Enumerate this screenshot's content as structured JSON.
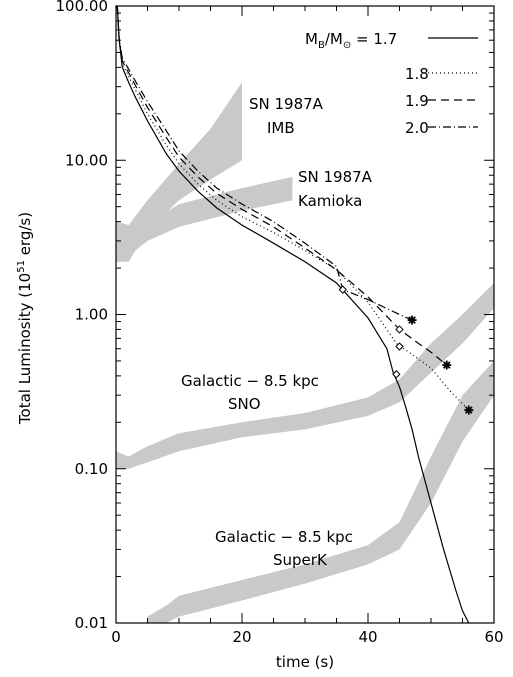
{
  "chart_data": {
    "type": "line",
    "xlabel": "time (s)",
    "ylabel": "Total Luminosity (10",
    "ylabel_sup": "51",
    "ylabel_tail": " erg/s)",
    "xlim": [
      0,
      60
    ],
    "ylim": [
      0.01,
      100
    ],
    "yscale": "log",
    "x_ticks": [
      {
        "value": 0,
        "label": "0"
      },
      {
        "value": 20,
        "label": "20"
      },
      {
        "value": 40,
        "label": "40"
      },
      {
        "value": 60,
        "label": "60"
      }
    ],
    "y_ticks": [
      {
        "value": 0.01,
        "label": "0.01"
      },
      {
        "value": 0.1,
        "label": "0.10"
      },
      {
        "value": 1,
        "label": "1.00"
      },
      {
        "value": 10,
        "label": "10.00"
      },
      {
        "value": 100,
        "label": "100.00"
      }
    ],
    "legend": {
      "title_M": "M",
      "title_B": "B",
      "title_slash": "/M",
      "title_sun": "⊙",
      "title_eq": " = ",
      "placement": "top-right"
    },
    "series": [
      {
        "name": "1.7",
        "dash": "solid",
        "x": [
          0.2,
          0.5,
          1,
          2,
          3,
          5,
          8,
          10,
          13,
          16,
          20,
          25,
          30,
          35,
          40,
          43,
          44,
          45,
          46,
          47,
          48,
          50,
          52,
          54,
          55,
          56
        ],
        "y": [
          100,
          60,
          40,
          32,
          26,
          18,
          11,
          8.5,
          6.3,
          4.9,
          3.8,
          2.9,
          2.2,
          1.6,
          0.95,
          0.6,
          0.42,
          0.34,
          0.25,
          0.18,
          0.12,
          0.06,
          0.03,
          0.016,
          0.012,
          0.01
        ],
        "diamond": {
          "x": 44.5,
          "y": 0.41
        }
      },
      {
        "name": "1.8",
        "dash": "dotted",
        "x": [
          0.2,
          0.5,
          1,
          2,
          3,
          5,
          8,
          10,
          13,
          16,
          20,
          25,
          30,
          35,
          40,
          44.5,
          47,
          50,
          53,
          56
        ],
        "y": [
          100,
          60,
          42,
          35,
          29,
          20,
          12.5,
          9.5,
          7.0,
          5.5,
          4.3,
          3.4,
          2.6,
          1.95,
          1.2,
          0.65,
          0.55,
          0.45,
          0.32,
          0.24
        ],
        "diamond": {
          "x": 45,
          "y": 0.62
        },
        "star": {
          "x": 56,
          "y": 0.24
        }
      },
      {
        "name": "1.9",
        "dash": "dashed",
        "x": [
          0.2,
          0.5,
          1,
          2,
          3,
          5,
          8,
          10,
          13,
          16,
          20,
          25,
          30,
          35,
          40,
          45,
          48,
          50,
          52.5
        ],
        "y": [
          100,
          60,
          44,
          37,
          31,
          22,
          14,
          10.5,
          7.8,
          6.1,
          4.8,
          3.7,
          2.7,
          1.95,
          1.3,
          0.8,
          0.65,
          0.57,
          0.47
        ],
        "diamond": {
          "x": 45,
          "y": 0.8
        },
        "star": {
          "x": 52.5,
          "y": 0.47
        }
      },
      {
        "name": "2.0",
        "dash": "dashdot",
        "x": [
          0.2,
          0.5,
          1,
          2,
          3,
          5,
          8,
          10,
          13,
          16,
          20,
          25,
          30,
          35,
          36,
          40,
          45,
          47
        ],
        "y": [
          100,
          60,
          46,
          39,
          33,
          24,
          15.5,
          11.5,
          8.5,
          6.6,
          5.2,
          4.0,
          2.9,
          2.05,
          1.45,
          1.25,
          1.0,
          0.92
        ],
        "diamond": {
          "x": 36,
          "y": 1.45
        },
        "star": {
          "x": 47,
          "y": 0.92
        }
      }
    ],
    "bands": [
      {
        "label1": "SN 1987A",
        "label2": "IMB",
        "upper": [
          [
            0,
            4
          ],
          [
            2,
            3.8
          ],
          [
            5,
            5.5
          ],
          [
            10,
            9.5
          ],
          [
            15,
            16
          ],
          [
            20,
            32
          ]
        ],
        "lower": [
          [
            0,
            2.2
          ],
          [
            2,
            2.2
          ],
          [
            5,
            3.5
          ],
          [
            10,
            5.5
          ],
          [
            15,
            7.5
          ],
          [
            20,
            10
          ]
        ]
      },
      {
        "label1": "SN 1987A",
        "label2": "Kamioka",
        "upper": [
          [
            0,
            3.2
          ],
          [
            2,
            3.3
          ],
          [
            5,
            3.9
          ],
          [
            10,
            5.2
          ],
          [
            20,
            6.6
          ],
          [
            28,
            7.8
          ]
        ],
        "lower": [
          [
            0,
            2.2
          ],
          [
            2,
            2.4
          ],
          [
            5,
            3.0
          ],
          [
            10,
            3.7
          ],
          [
            20,
            4.7
          ],
          [
            28,
            5.5
          ]
        ]
      },
      {
        "label1": "Galactic − 8.5 kpc",
        "label2": "SNO",
        "upper": [
          [
            0,
            0.13
          ],
          [
            2,
            0.12
          ],
          [
            5,
            0.14
          ],
          [
            10,
            0.17
          ],
          [
            20,
            0.2
          ],
          [
            30,
            0.23
          ],
          [
            40,
            0.29
          ],
          [
            45,
            0.38
          ],
          [
            50,
            0.65
          ],
          [
            55,
            1.0
          ],
          [
            60,
            1.6
          ]
        ],
        "lower": [
          [
            0,
            0.1
          ],
          [
            2,
            0.1
          ],
          [
            5,
            0.11
          ],
          [
            10,
            0.13
          ],
          [
            20,
            0.16
          ],
          [
            30,
            0.18
          ],
          [
            40,
            0.22
          ],
          [
            45,
            0.27
          ],
          [
            50,
            0.42
          ],
          [
            55,
            0.65
          ],
          [
            60,
            1.1
          ]
        ]
      },
      {
        "label1": "Galactic − 8.5 kpc",
        "label2": "SuperK",
        "upper": [
          [
            5,
            0.011
          ],
          [
            8,
            0.013
          ],
          [
            10,
            0.015
          ],
          [
            20,
            0.019
          ],
          [
            30,
            0.024
          ],
          [
            40,
            0.032
          ],
          [
            45,
            0.045
          ],
          [
            50,
            0.12
          ],
          [
            55,
            0.3
          ],
          [
            60,
            0.5
          ]
        ],
        "lower": [
          [
            5,
            0.009
          ],
          [
            8,
            0.01
          ],
          [
            10,
            0.011
          ],
          [
            20,
            0.014
          ],
          [
            30,
            0.018
          ],
          [
            40,
            0.024
          ],
          [
            45,
            0.03
          ],
          [
            50,
            0.06
          ],
          [
            55,
            0.15
          ],
          [
            60,
            0.3
          ]
        ]
      }
    ]
  }
}
